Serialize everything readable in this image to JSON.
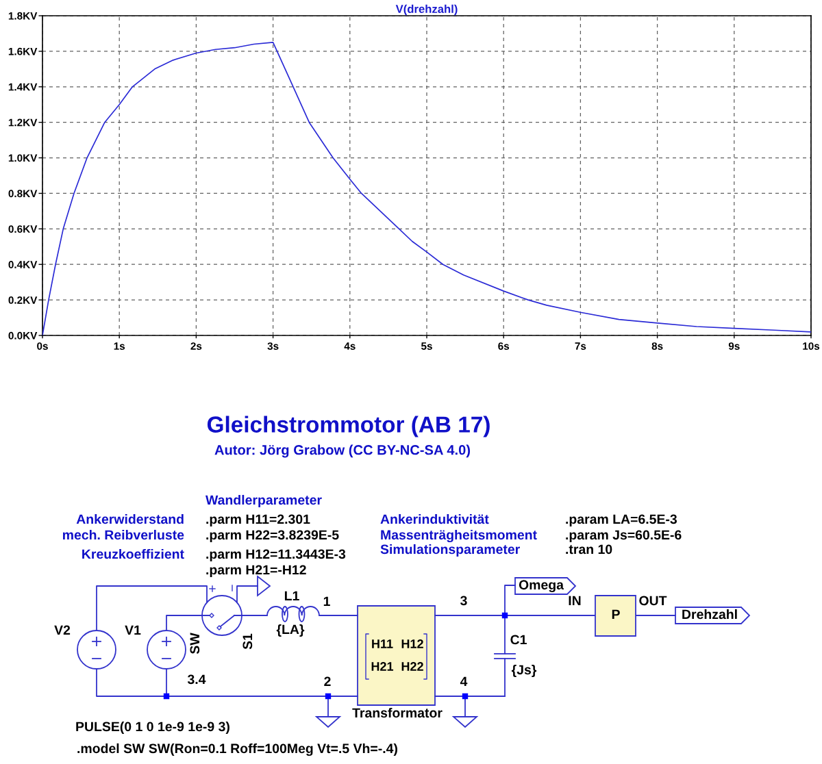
{
  "chart_data": {
    "type": "line",
    "title": "V(drehzahl)",
    "x": [
      0,
      0.08,
      0.17,
      0.27,
      0.41,
      0.58,
      0.81,
      1.0,
      1.17,
      1.46,
      1.7,
      2.0,
      2.25,
      2.5,
      2.75,
      3.0,
      3.22,
      3.47,
      3.78,
      4.0,
      4.15,
      4.64,
      4.81,
      5.0,
      5.21,
      5.48,
      6.0,
      6.32,
      6.56,
      7.0,
      7.5,
      8.0,
      8.51,
      9.0,
      9.52,
      10.0
    ],
    "series": [
      {
        "color": "#2a2ad6",
        "values": [
          0,
          0.2,
          0.4,
          0.6,
          0.8,
          1.0,
          1.2,
          1.3,
          1.4,
          1.5,
          1.55,
          1.59,
          1.61,
          1.62,
          1.64,
          1.65,
          1.44,
          1.2,
          1.0,
          0.88,
          0.8,
          0.6,
          0.53,
          0.47,
          0.4,
          0.34,
          0.25,
          0.2,
          0.17,
          0.13,
          0.09,
          0.07,
          0.05,
          0.04,
          0.03,
          0.02
        ]
      }
    ],
    "xlim": [
      0,
      10
    ],
    "xticks": [
      {
        "value": 0,
        "label": "0s"
      },
      {
        "value": 1,
        "label": "1s"
      },
      {
        "value": 2,
        "label": "2s"
      },
      {
        "value": 3,
        "label": "3s"
      },
      {
        "value": 4,
        "label": "4s"
      },
      {
        "value": 5,
        "label": "5s"
      },
      {
        "value": 6,
        "label": "6s"
      },
      {
        "value": 7,
        "label": "7s"
      },
      {
        "value": 8,
        "label": "8s"
      },
      {
        "value": 9,
        "label": "9s"
      },
      {
        "value": 10,
        "label": "10s"
      }
    ],
    "ylim": [
      0,
      1.8
    ],
    "yticks": [
      {
        "value": 0,
        "label": "0.0KV"
      },
      {
        "value": 0.2,
        "label": "0.2KV"
      },
      {
        "value": 0.4,
        "label": "0.4KV"
      },
      {
        "value": 0.6,
        "label": "0.6KV"
      },
      {
        "value": 0.8,
        "label": "0.8KV"
      },
      {
        "value": 1.0,
        "label": "1.0KV"
      },
      {
        "value": 1.2,
        "label": "1.2KV"
      },
      {
        "value": 1.4,
        "label": "1.4KV"
      },
      {
        "value": 1.6,
        "label": "1.6KV"
      },
      {
        "value": 1.8,
        "label": "1.8KV"
      }
    ],
    "grid": true,
    "line_style": "solid",
    "annotations": [
      "Gleichstrommotor (AB 17)",
      "Autor: Jörg Grabow (CC BY-NC-SA 4.0)",
      "Wandlerparameter",
      "Ankerwiderstand",
      ".parm H11=2.301",
      "Ankerinduktivität",
      ".param LA=6.5E-3",
      "mech. Reibverluste",
      ".parm H22=3.8239E-5",
      "Massenträgheitsmoment",
      ".param Js=60.5E-6",
      "Kreuzkoeffizient",
      ".parm H12=11.3443E-3",
      "Simulationsparameter",
      ".tran 10",
      ".parm H21=-H12",
      "Omega",
      "IN",
      "P",
      "OUT",
      "Drehzahl",
      "L1",
      "1",
      "3",
      "V2",
      "V1",
      "SW",
      "S1",
      "{LA}",
      "C1",
      "{Js}",
      "H11",
      "H12",
      "H21",
      "H22",
      "3.4",
      "2",
      "4",
      "Transformator",
      "PULSE(0 1 0 1e-9 1e-9 3)",
      ".model SW SW(Ron=0.1 Roff=100Meg Vt=.5 Vh=-.4)"
    ]
  }
}
